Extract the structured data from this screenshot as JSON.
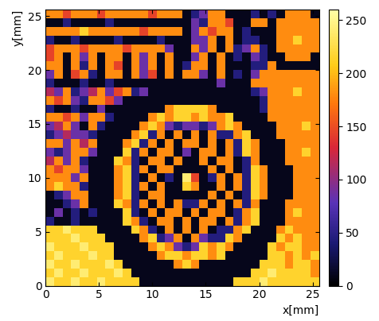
{
  "chart_data": {
    "type": "heatmap",
    "xlabel": "x[mm]",
    "ylabel": "y[mm]",
    "xlim": [
      0,
      25.6
    ],
    "ylim": [
      0,
      25.6
    ],
    "xticks": [
      0,
      5,
      10,
      15,
      20,
      25
    ],
    "yticks": [
      0,
      5,
      10,
      15,
      20,
      25
    ],
    "colorbar": {
      "range": [
        0,
        260
      ],
      "ticks": [
        0,
        50,
        100,
        150,
        200,
        250
      ]
    },
    "cells": [
      [
        180,
        180,
        145,
        180,
        180,
        180,
        145,
        180,
        180,
        180,
        180,
        180,
        145,
        180,
        180,
        180,
        10,
        45,
        85,
        180,
        180,
        10,
        10,
        10,
        45,
        10,
        45,
        10,
        180,
        180,
        180,
        10
      ],
      [
        10,
        10,
        45,
        10,
        10,
        10,
        10,
        45,
        10,
        10,
        10,
        10,
        10,
        10,
        10,
        10,
        10,
        85,
        45,
        180,
        180,
        145,
        10,
        10,
        180,
        180,
        10,
        180,
        180,
        180,
        180,
        180
      ],
      [
        180,
        180,
        180,
        180,
        215,
        180,
        180,
        180,
        180,
        180,
        180,
        145,
        180,
        180,
        180,
        180,
        10,
        85,
        180,
        145,
        180,
        180,
        10,
        45,
        10,
        10,
        10,
        180,
        180,
        180,
        180,
        180
      ],
      [
        45,
        10,
        10,
        45,
        10,
        10,
        10,
        10,
        45,
        10,
        10,
        10,
        10,
        45,
        10,
        10,
        10,
        85,
        85,
        180,
        10,
        180,
        10,
        45,
        45,
        10,
        10,
        180,
        180,
        215,
        180,
        180
      ],
      [
        145,
        180,
        180,
        180,
        145,
        180,
        180,
        180,
        180,
        145,
        180,
        180,
        180,
        180,
        85,
        10,
        10,
        180,
        85,
        180,
        10,
        180,
        45,
        85,
        180,
        45,
        10,
        180,
        180,
        180,
        180,
        180
      ],
      [
        145,
        180,
        10,
        180,
        85,
        180,
        10,
        180,
        180,
        10,
        180,
        85,
        180,
        10,
        180,
        10,
        10,
        85,
        180,
        10,
        180,
        10,
        45,
        10,
        85,
        45,
        10,
        10,
        180,
        180,
        180,
        10
      ],
      [
        180,
        180,
        10,
        180,
        45,
        180,
        10,
        180,
        145,
        10,
        180,
        85,
        180,
        10,
        180,
        10,
        45,
        180,
        180,
        10,
        180,
        10,
        10,
        10,
        45,
        45,
        180,
        10,
        10,
        10,
        10,
        10
      ],
      [
        85,
        180,
        10,
        145,
        180,
        45,
        10,
        180,
        180,
        10,
        180,
        85,
        145,
        10,
        180,
        10,
        180,
        180,
        85,
        10,
        180,
        10,
        45,
        10,
        85,
        180,
        180,
        180,
        180,
        180,
        180,
        180
      ],
      [
        45,
        10,
        10,
        10,
        45,
        10,
        10,
        45,
        10,
        10,
        10,
        10,
        10,
        10,
        10,
        10,
        10,
        10,
        10,
        10,
        85,
        10,
        10,
        10,
        180,
        180,
        180,
        180,
        180,
        180,
        180,
        180
      ],
      [
        115,
        85,
        180,
        45,
        85,
        115,
        180,
        85,
        145,
        180,
        45,
        85,
        10,
        10,
        10,
        10,
        10,
        10,
        10,
        10,
        10,
        10,
        10,
        10,
        45,
        85,
        180,
        180,
        180,
        215,
        180,
        180
      ],
      [
        180,
        145,
        180,
        85,
        45,
        180,
        180,
        145,
        85,
        10,
        10,
        10,
        10,
        10,
        10,
        10,
        10,
        10,
        10,
        10,
        10,
        10,
        10,
        10,
        10,
        45,
        180,
        180,
        180,
        180,
        180,
        180
      ],
      [
        45,
        10,
        10,
        45,
        10,
        10,
        85,
        10,
        10,
        10,
        10,
        10,
        10,
        10,
        180,
        215,
        215,
        215,
        215,
        180,
        10,
        10,
        10,
        10,
        10,
        45,
        180,
        180,
        180,
        180,
        180,
        180
      ],
      [
        180,
        180,
        145,
        180,
        85,
        180,
        180,
        45,
        10,
        10,
        10,
        10,
        180,
        215,
        180,
        215,
        215,
        180,
        215,
        180,
        180,
        215,
        10,
        10,
        10,
        10,
        180,
        180,
        180,
        180,
        180,
        180
      ],
      [
        85,
        115,
        180,
        85,
        10,
        180,
        45,
        10,
        10,
        10,
        10,
        180,
        215,
        180,
        85,
        45,
        85,
        85,
        45,
        85,
        180,
        215,
        180,
        10,
        10,
        10,
        10,
        180,
        180,
        180,
        215,
        180
      ],
      [
        45,
        85,
        115,
        85,
        85,
        45,
        10,
        10,
        10,
        10,
        180,
        215,
        45,
        180,
        10,
        180,
        10,
        180,
        10,
        180,
        45,
        45,
        180,
        215,
        10,
        10,
        10,
        180,
        180,
        180,
        180,
        180
      ],
      [
        180,
        180,
        85,
        180,
        115,
        180,
        10,
        10,
        10,
        180,
        215,
        45,
        180,
        10,
        180,
        10,
        180,
        180,
        10,
        180,
        10,
        180,
        45,
        215,
        180,
        10,
        10,
        10,
        180,
        180,
        180,
        180
      ],
      [
        85,
        45,
        85,
        180,
        180,
        85,
        10,
        10,
        10,
        215,
        45,
        180,
        10,
        180,
        180,
        10,
        85,
        10,
        180,
        180,
        10,
        180,
        45,
        215,
        180,
        10,
        10,
        10,
        180,
        180,
        215,
        180
      ],
      [
        115,
        180,
        85,
        180,
        45,
        10,
        10,
        10,
        215,
        180,
        45,
        10,
        180,
        180,
        10,
        180,
        10,
        10,
        180,
        10,
        180,
        180,
        10,
        45,
        180,
        10,
        10,
        10,
        180,
        180,
        180,
        180
      ],
      [
        180,
        145,
        180,
        180,
        85,
        10,
        10,
        10,
        180,
        215,
        45,
        180,
        10,
        180,
        180,
        10,
        10,
        10,
        10,
        180,
        10,
        180,
        10,
        45,
        215,
        180,
        10,
        10,
        10,
        180,
        180,
        180
      ],
      [
        180,
        180,
        180,
        85,
        180,
        10,
        10,
        10,
        180,
        215,
        45,
        10,
        180,
        10,
        45,
        10,
        240,
        145,
        10,
        45,
        180,
        10,
        180,
        45,
        215,
        180,
        10,
        10,
        10,
        180,
        180,
        180
      ],
      [
        180,
        215,
        180,
        180,
        45,
        10,
        10,
        10,
        180,
        215,
        45,
        180,
        10,
        180,
        10,
        10,
        215,
        180,
        10,
        10,
        180,
        10,
        180,
        45,
        215,
        180,
        10,
        10,
        10,
        180,
        180,
        180
      ],
      [
        10,
        45,
        85,
        180,
        180,
        10,
        10,
        10,
        180,
        215,
        45,
        10,
        180,
        180,
        10,
        10,
        10,
        10,
        10,
        180,
        10,
        180,
        10,
        45,
        215,
        180,
        10,
        10,
        10,
        180,
        180,
        180
      ],
      [
        10,
        10,
        45,
        85,
        180,
        10,
        10,
        10,
        215,
        180,
        45,
        180,
        10,
        180,
        10,
        180,
        45,
        45,
        180,
        10,
        180,
        10,
        180,
        45,
        180,
        10,
        10,
        10,
        180,
        180,
        180,
        180
      ],
      [
        10,
        85,
        10,
        45,
        10,
        45,
        10,
        10,
        10,
        215,
        45,
        10,
        180,
        10,
        180,
        180,
        10,
        180,
        10,
        180,
        180,
        10,
        45,
        180,
        215,
        10,
        10,
        10,
        180,
        215,
        180,
        180
      ],
      [
        45,
        10,
        10,
        45,
        10,
        10,
        10,
        10,
        10,
        215,
        180,
        45,
        10,
        180,
        180,
        10,
        180,
        10,
        180,
        180,
        10,
        180,
        45,
        180,
        215,
        10,
        10,
        10,
        180,
        180,
        180,
        180
      ],
      [
        215,
        215,
        240,
        215,
        215,
        215,
        10,
        10,
        10,
        10,
        215,
        180,
        45,
        10,
        180,
        10,
        180,
        10,
        180,
        10,
        45,
        45,
        180,
        215,
        10,
        10,
        10,
        180,
        215,
        180,
        180,
        180
      ],
      [
        215,
        215,
        215,
        240,
        215,
        215,
        215,
        10,
        10,
        10,
        10,
        180,
        215,
        45,
        85,
        180,
        10,
        180,
        85,
        45,
        45,
        215,
        180,
        10,
        10,
        10,
        10,
        215,
        180,
        215,
        180,
        180
      ],
      [
        240,
        215,
        215,
        215,
        240,
        215,
        215,
        215,
        10,
        10,
        10,
        10,
        180,
        215,
        180,
        85,
        45,
        85,
        215,
        180,
        215,
        180,
        10,
        10,
        10,
        10,
        215,
        180,
        215,
        215,
        180,
        180
      ],
      [
        215,
        240,
        215,
        215,
        215,
        240,
        215,
        215,
        10,
        10,
        10,
        10,
        10,
        180,
        215,
        215,
        180,
        215,
        215,
        180,
        215,
        10,
        10,
        10,
        10,
        10,
        215,
        215,
        180,
        215,
        180,
        215
      ],
      [
        240,
        215,
        215,
        240,
        215,
        215,
        215,
        240,
        215,
        10,
        10,
        10,
        10,
        10,
        10,
        180,
        215,
        180,
        10,
        10,
        10,
        10,
        10,
        10,
        10,
        215,
        215,
        215,
        180,
        215,
        215,
        180
      ],
      [
        215,
        240,
        215,
        215,
        240,
        215,
        215,
        215,
        240,
        215,
        10,
        10,
        10,
        10,
        10,
        10,
        10,
        10,
        10,
        10,
        10,
        10,
        10,
        10,
        215,
        215,
        240,
        215,
        215,
        215,
        215,
        180
      ],
      [
        240,
        215,
        215,
        240,
        215,
        215,
        240,
        215,
        215,
        215,
        215,
        10,
        10,
        10,
        10,
        10,
        10,
        10,
        10,
        10,
        10,
        10,
        215,
        215,
        215,
        240,
        215,
        215,
        215,
        215,
        215,
        215
      ]
    ]
  }
}
